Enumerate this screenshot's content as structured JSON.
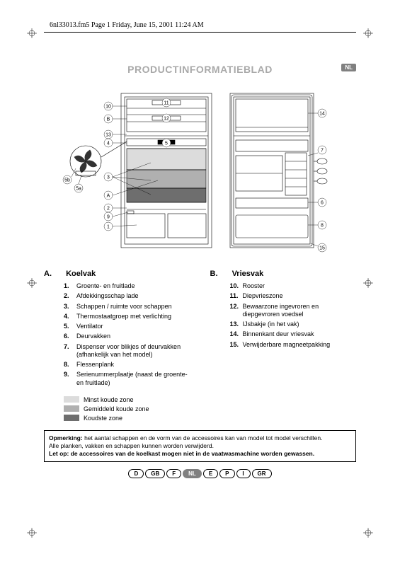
{
  "header": {
    "file_info": "6nl33013.fm5  Page 1  Friday, June 15, 2001  11:24 AM"
  },
  "title": "PRODUCTINFORMATIEBLAD",
  "lang_badge": "NL",
  "diagram": {
    "callouts": [
      "1",
      "2",
      "3",
      "4",
      "5",
      "5a",
      "5b",
      "6",
      "7",
      "8",
      "9",
      "10",
      "11",
      "12",
      "13",
      "14",
      "15",
      "A",
      "B"
    ],
    "colors": {
      "outline": "#000000",
      "shade_light": "#dcdcdc",
      "shade_mid": "#b0b0b0",
      "shade_dark": "#6e6e6e"
    }
  },
  "section_a": {
    "letter": "A.",
    "heading": "Koelvak",
    "items": [
      {
        "n": "1.",
        "t": "Groente- en fruitlade"
      },
      {
        "n": "2.",
        "t": "Afdekkingsschap lade"
      },
      {
        "n": "3.",
        "t": "Schappen / ruimte voor schappen"
      },
      {
        "n": "4.",
        "t": "Thermostaatgroep met verlichting"
      },
      {
        "n": "5.",
        "t": "Ventilator"
      },
      {
        "n": "6.",
        "t": "Deurvakken"
      },
      {
        "n": "7.",
        "t": "Dispenser voor blikjes of deurvakken (afhankelijk van het model)"
      },
      {
        "n": "8.",
        "t": "Flessenplank"
      },
      {
        "n": "9.",
        "t": "Serienummerplaatje (naast de groente- en fruitlade)"
      }
    ]
  },
  "section_b": {
    "letter": "B.",
    "heading": "Vriesvak",
    "items": [
      {
        "n": "10.",
        "t": "Rooster"
      },
      {
        "n": "11.",
        "t": "Diepvrieszone"
      },
      {
        "n": "12.",
        "t": "Bewaarzone ingevroren en diepgevroren voedsel"
      },
      {
        "n": "13.",
        "t": "IJsbakje (in het vak)"
      },
      {
        "n": "14.",
        "t": "Binnenkant deur vriesvak"
      },
      {
        "n": "15.",
        "t": "Verwijderbare magneetpakking"
      }
    ]
  },
  "legend": [
    {
      "color": "#dcdcdc",
      "label": "Minst koude zone"
    },
    {
      "color": "#b0b0b0",
      "label": "Gemiddeld koude zone"
    },
    {
      "color": "#6e6e6e",
      "label": "Koudste zone"
    }
  ],
  "note": {
    "l1_bold": "Opmerking:",
    "l1": " het aantal schappen en de vorm van de accessoires kan van model tot model verschillen.",
    "l2": "Alle planken, vakken en schappen kunnen worden verwijderd.",
    "l3": "Let op: de accessoires van de koelkast mogen niet in de vaatwasmachine worden gewassen."
  },
  "languages": [
    {
      "code": "D",
      "active": false
    },
    {
      "code": "GB",
      "active": false
    },
    {
      "code": "F",
      "active": false
    },
    {
      "code": "NL",
      "active": true
    },
    {
      "code": "E",
      "active": false
    },
    {
      "code": "P",
      "active": false
    },
    {
      "code": "I",
      "active": false
    },
    {
      "code": "GR",
      "active": false
    }
  ]
}
